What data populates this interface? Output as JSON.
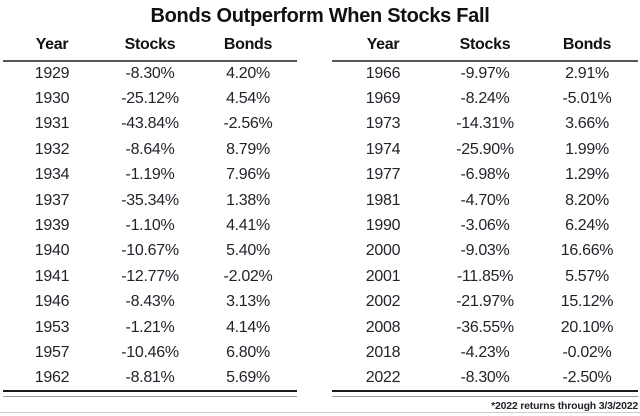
{
  "chart_data": {
    "type": "table",
    "title": "Bonds Outperform When Stocks Fall",
    "columns": [
      "Year",
      "Stocks",
      "Bonds"
    ],
    "tables": [
      {
        "name": "left",
        "rows": [
          [
            "1929",
            "-8.30%",
            "4.20%"
          ],
          [
            "1930",
            "-25.12%",
            "4.54%"
          ],
          [
            "1931",
            "-43.84%",
            "-2.56%"
          ],
          [
            "1932",
            "-8.64%",
            "8.79%"
          ],
          [
            "1934",
            "-1.19%",
            "7.96%"
          ],
          [
            "1937",
            "-35.34%",
            "1.38%"
          ],
          [
            "1939",
            "-1.10%",
            "4.41%"
          ],
          [
            "1940",
            "-10.67%",
            "5.40%"
          ],
          [
            "1941",
            "-12.77%",
            "-2.02%"
          ],
          [
            "1946",
            "-8.43%",
            "3.13%"
          ],
          [
            "1953",
            "-1.21%",
            "4.14%"
          ],
          [
            "1957",
            "-10.46%",
            "6.80%"
          ],
          [
            "1962",
            "-8.81%",
            "5.69%"
          ]
        ]
      },
      {
        "name": "right",
        "rows": [
          [
            "1966",
            "-9.97%",
            "2.91%"
          ],
          [
            "1969",
            "-8.24%",
            "-5.01%"
          ],
          [
            "1973",
            "-14.31%",
            "3.66%"
          ],
          [
            "1974",
            "-25.90%",
            "1.99%"
          ],
          [
            "1977",
            "-6.98%",
            "1.29%"
          ],
          [
            "1981",
            "-4.70%",
            "8.20%"
          ],
          [
            "1990",
            "-3.06%",
            "6.24%"
          ],
          [
            "2000",
            "-9.03%",
            "16.66%"
          ],
          [
            "2001",
            "-11.85%",
            "5.57%"
          ],
          [
            "2002",
            "-21.97%",
            "15.12%"
          ],
          [
            "2008",
            "-36.55%",
            "20.10%"
          ],
          [
            "2018",
            "-4.23%",
            "-0.02%"
          ],
          [
            "2022",
            "-8.30%",
            "-2.50%"
          ]
        ]
      }
    ],
    "footnote": "*2022 returns through 3/3/2022"
  },
  "colors": {
    "text": "#23232b",
    "title": "#111111",
    "header_rule": "#565656",
    "table_bottom_dark": "#1b1b1b",
    "table_bottom_light": "#9b9b9b",
    "bottom_frame": "#cccccc",
    "background": "#ffffff"
  }
}
